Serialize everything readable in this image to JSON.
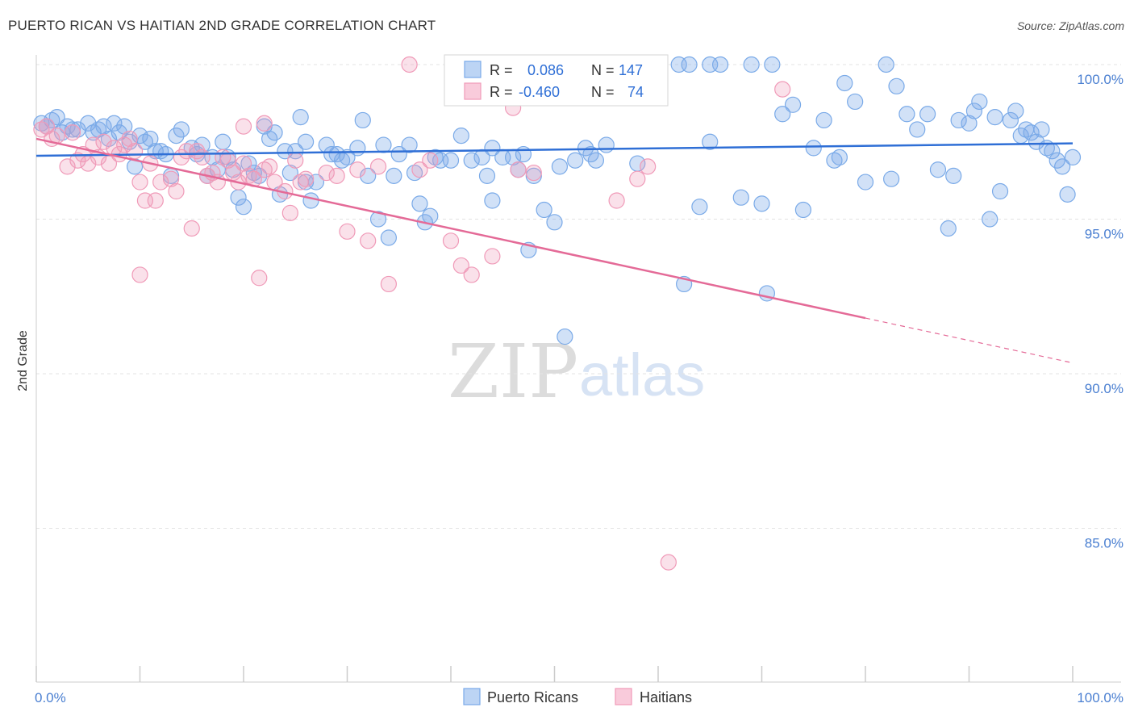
{
  "header": {
    "title": "PUERTO RICAN VS HAITIAN 2ND GRADE CORRELATION CHART",
    "source": "Source: ZipAtlas.com"
  },
  "legend": {
    "r_label": "R =",
    "n_label": "N =",
    "rows": [
      {
        "r": "0.086",
        "n": "147",
        "color": "#7aaae8"
      },
      {
        "r": "-0.460",
        "n": "74",
        "color": "#f09ab8"
      }
    ]
  },
  "watermark": {
    "zip": "ZIP",
    "atlas": "atlas"
  },
  "chart_data": {
    "type": "scatter",
    "title": "PUERTO RICAN VS HAITIAN 2ND GRADE CORRELATION CHART",
    "ylabel": "2nd Grade",
    "xlabel": "",
    "xlim": [
      0,
      100
    ],
    "ylim": [
      80.5,
      100.7
    ],
    "x_tick_labels": [
      "0.0%",
      "100.0%"
    ],
    "y_ticks": [
      100,
      95,
      90,
      85
    ],
    "y_tick_labels": [
      "100.0%",
      "95.0%",
      "90.0%",
      "85.0%"
    ],
    "grid": true,
    "series": [
      {
        "name": "Puerto Ricans",
        "color": "#7aaae8",
        "trend": {
          "x0": 0,
          "y0": 97.05,
          "x1": 100,
          "y1": 97.45,
          "dashed_from": null
        },
        "points": [
          [
            0.5,
            98.1
          ],
          [
            1,
            98.0
          ],
          [
            1.5,
            98.2
          ],
          [
            2,
            98.3
          ],
          [
            2.5,
            97.8
          ],
          [
            3,
            98.0
          ],
          [
            3.5,
            97.9
          ],
          [
            4,
            97.9
          ],
          [
            5,
            98.1
          ],
          [
            5.5,
            97.8
          ],
          [
            6,
            97.9
          ],
          [
            6.5,
            98.0
          ],
          [
            7,
            97.6
          ],
          [
            7.5,
            98.1
          ],
          [
            8,
            97.8
          ],
          [
            8.5,
            98.0
          ],
          [
            9,
            97.5
          ],
          [
            9.5,
            96.7
          ],
          [
            10,
            97.7
          ],
          [
            10.5,
            97.5
          ],
          [
            11,
            97.6
          ],
          [
            12,
            97.2
          ],
          [
            12.5,
            97.1
          ],
          [
            13,
            96.4
          ],
          [
            13.5,
            97.7
          ],
          [
            14,
            97.9
          ],
          [
            15,
            97.3
          ],
          [
            15.5,
            97.1
          ],
          [
            16,
            97.4
          ],
          [
            16.5,
            96.4
          ],
          [
            17,
            97.0
          ],
          [
            17.5,
            96.6
          ],
          [
            18,
            97.5
          ],
          [
            18.5,
            97.0
          ],
          [
            19,
            96.6
          ],
          [
            19.5,
            95.7
          ],
          [
            20,
            95.4
          ],
          [
            20.5,
            96.8
          ],
          [
            21,
            96.5
          ],
          [
            21.5,
            96.4
          ],
          [
            22,
            98.0
          ],
          [
            22.5,
            97.6
          ],
          [
            23,
            97.8
          ],
          [
            23.5,
            95.8
          ],
          [
            24,
            97.2
          ],
          [
            24.5,
            96.5
          ],
          [
            25,
            97.2
          ],
          [
            25.5,
            98.3
          ],
          [
            26,
            96.2
          ],
          [
            26.5,
            95.6
          ],
          [
            27,
            96.2
          ],
          [
            28,
            97.4
          ],
          [
            28.5,
            97.1
          ],
          [
            29,
            97.1
          ],
          [
            29.5,
            96.9
          ],
          [
            30,
            97.0
          ],
          [
            31,
            97.3
          ],
          [
            31.5,
            98.2
          ],
          [
            32,
            96.4
          ],
          [
            33,
            95.0
          ],
          [
            33.5,
            97.4
          ],
          [
            34,
            94.4
          ],
          [
            34.5,
            96.4
          ],
          [
            35,
            97.1
          ],
          [
            36,
            97.4
          ],
          [
            36.5,
            96.5
          ],
          [
            37,
            95.5
          ],
          [
            37.5,
            94.9
          ],
          [
            38,
            95.1
          ],
          [
            38.5,
            97.0
          ],
          [
            39,
            96.9
          ],
          [
            40,
            96.9
          ],
          [
            41,
            97.7
          ],
          [
            42,
            96.9
          ],
          [
            42.5,
            99.3
          ],
          [
            43,
            97.0
          ],
          [
            43.5,
            96.4
          ],
          [
            44,
            95.6
          ],
          [
            45,
            97.0
          ],
          [
            46,
            97.0
          ],
          [
            46.5,
            96.6
          ],
          [
            47,
            97.1
          ],
          [
            47.5,
            94.0
          ],
          [
            48,
            96.4
          ],
          [
            49,
            95.3
          ],
          [
            50,
            94.9
          ],
          [
            50.5,
            96.7
          ],
          [
            51,
            91.2
          ],
          [
            52,
            96.9
          ],
          [
            53,
            97.3
          ],
          [
            54,
            96.9
          ],
          [
            55,
            97.4
          ],
          [
            56,
            100.0
          ],
          [
            57,
            100.0
          ],
          [
            58,
            96.8
          ],
          [
            60,
            100.0
          ],
          [
            62,
            100.0
          ],
          [
            62.5,
            92.9
          ],
          [
            63,
            100.0
          ],
          [
            64,
            95.4
          ],
          [
            65,
            100.0
          ],
          [
            66,
            100.0
          ],
          [
            68,
            95.7
          ],
          [
            69,
            100.0
          ],
          [
            70,
            95.5
          ],
          [
            70.5,
            92.6
          ],
          [
            71,
            100.0
          ],
          [
            72,
            98.4
          ],
          [
            73,
            98.7
          ],
          [
            74,
            95.3
          ],
          [
            75,
            97.3
          ],
          [
            76,
            98.2
          ],
          [
            77,
            96.9
          ],
          [
            78,
            99.4
          ],
          [
            79,
            98.8
          ],
          [
            80,
            96.2
          ],
          [
            82,
            100.0
          ],
          [
            82.5,
            96.3
          ],
          [
            83,
            99.3
          ],
          [
            84,
            98.4
          ],
          [
            85,
            97.9
          ],
          [
            86,
            98.4
          ],
          [
            87,
            96.6
          ],
          [
            88,
            94.7
          ],
          [
            88.5,
            96.4
          ],
          [
            89,
            98.2
          ],
          [
            90,
            98.1
          ],
          [
            90.5,
            98.5
          ],
          [
            91,
            98.8
          ],
          [
            92,
            95.0
          ],
          [
            92.5,
            98.3
          ],
          [
            93,
            95.9
          ],
          [
            94,
            98.2
          ],
          [
            94.5,
            98.5
          ],
          [
            95,
            97.7
          ],
          [
            95.5,
            97.9
          ],
          [
            96,
            97.8
          ],
          [
            96.5,
            97.5
          ],
          [
            97,
            97.9
          ],
          [
            97.5,
            97.3
          ],
          [
            98,
            97.2
          ],
          [
            98.5,
            96.9
          ],
          [
            99,
            96.7
          ],
          [
            99.5,
            95.8
          ],
          [
            100,
            97.0
          ],
          [
            11.5,
            97.2
          ],
          [
            26,
            97.5
          ],
          [
            44,
            97.3
          ],
          [
            77.5,
            97.0
          ],
          [
            65,
            97.5
          ],
          [
            53.5,
            97.1
          ]
        ]
      },
      {
        "name": "Haitians",
        "color": "#f09ab8",
        "trend": {
          "x0": 0,
          "y0": 97.6,
          "x1": 100,
          "y1": 90.35,
          "dashed_from": 80
        },
        "points": [
          [
            0.5,
            97.9
          ],
          [
            1,
            98.0
          ],
          [
            1.5,
            97.6
          ],
          [
            2,
            97.7
          ],
          [
            3,
            96.7
          ],
          [
            3.5,
            97.8
          ],
          [
            4,
            96.9
          ],
          [
            4.5,
            97.1
          ],
          [
            5,
            96.8
          ],
          [
            5.5,
            97.4
          ],
          [
            6,
            97.0
          ],
          [
            6.5,
            97.5
          ],
          [
            7,
            96.8
          ],
          [
            7.5,
            97.3
          ],
          [
            8,
            97.1
          ],
          [
            8.5,
            97.4
          ],
          [
            9,
            97.6
          ],
          [
            9.5,
            97.2
          ],
          [
            10,
            96.2
          ],
          [
            10.5,
            95.6
          ],
          [
            11,
            96.8
          ],
          [
            11.5,
            95.6
          ],
          [
            12,
            96.2
          ],
          [
            13,
            96.3
          ],
          [
            13.5,
            95.9
          ],
          [
            14,
            97.0
          ],
          [
            14.5,
            97.2
          ],
          [
            15,
            94.7
          ],
          [
            15.5,
            97.2
          ],
          [
            16,
            97.0
          ],
          [
            16.5,
            96.4
          ],
          [
            17,
            96.5
          ],
          [
            17.5,
            96.2
          ],
          [
            18,
            97.0
          ],
          [
            18.5,
            96.9
          ],
          [
            19,
            96.5
          ],
          [
            19.5,
            96.2
          ],
          [
            20,
            96.8
          ],
          [
            20.5,
            96.4
          ],
          [
            21,
            96.3
          ],
          [
            21.5,
            93.1
          ],
          [
            22,
            96.6
          ],
          [
            22.5,
            96.7
          ],
          [
            23,
            96.2
          ],
          [
            24,
            95.9
          ],
          [
            24.5,
            95.2
          ],
          [
            25,
            96.9
          ],
          [
            25.5,
            96.2
          ],
          [
            10,
            93.2
          ],
          [
            26,
            96.3
          ],
          [
            28,
            96.5
          ],
          [
            29,
            96.4
          ],
          [
            30,
            94.6
          ],
          [
            31,
            96.6
          ],
          [
            32,
            94.3
          ],
          [
            33,
            96.7
          ],
          [
            34,
            92.9
          ],
          [
            36,
            100.0
          ],
          [
            37,
            96.6
          ],
          [
            38,
            96.9
          ],
          [
            40,
            94.3
          ],
          [
            41,
            93.5
          ],
          [
            42,
            93.2
          ],
          [
            44,
            93.8
          ],
          [
            46,
            98.6
          ],
          [
            46.5,
            96.6
          ],
          [
            48,
            96.5
          ],
          [
            56,
            95.6
          ],
          [
            58,
            96.3
          ],
          [
            59,
            96.7
          ],
          [
            61,
            83.9
          ],
          [
            72,
            99.2
          ],
          [
            22,
            98.1
          ],
          [
            20,
            98.0
          ]
        ]
      }
    ]
  },
  "bottom_legend": [
    {
      "label": "Puerto Ricans",
      "color": "#7aaae8"
    },
    {
      "label": "Haitians",
      "color": "#f09ab8"
    }
  ]
}
